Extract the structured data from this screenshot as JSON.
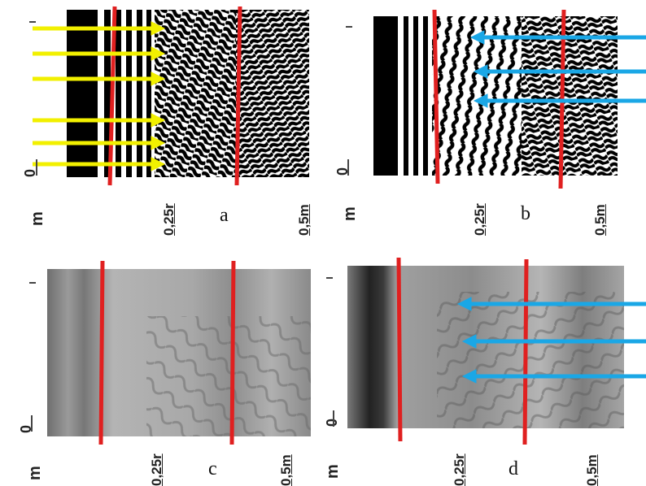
{
  "panels": [
    {
      "id": "a",
      "letter": "a",
      "unit": "m",
      "zero": "0",
      "mark_quarter": "0,25r",
      "mark_half": "0,5m"
    },
    {
      "id": "b",
      "letter": "b",
      "unit": "m",
      "zero": "0",
      "mark_quarter": "0,25r",
      "mark_half": "0,5m"
    },
    {
      "id": "c",
      "letter": "c",
      "unit": "m",
      "zero": "0",
      "mark_quarter": "0,25r",
      "mark_half": "0,5m"
    },
    {
      "id": "d",
      "letter": "d",
      "unit": "m",
      "zero": "0",
      "mark_quarter": "0,25r",
      "mark_half": "0,5m"
    }
  ],
  "colors": {
    "boundary": "#e02020",
    "arrow_yellow": "#f2f000",
    "arrow_blue": "#1aa7e6"
  }
}
